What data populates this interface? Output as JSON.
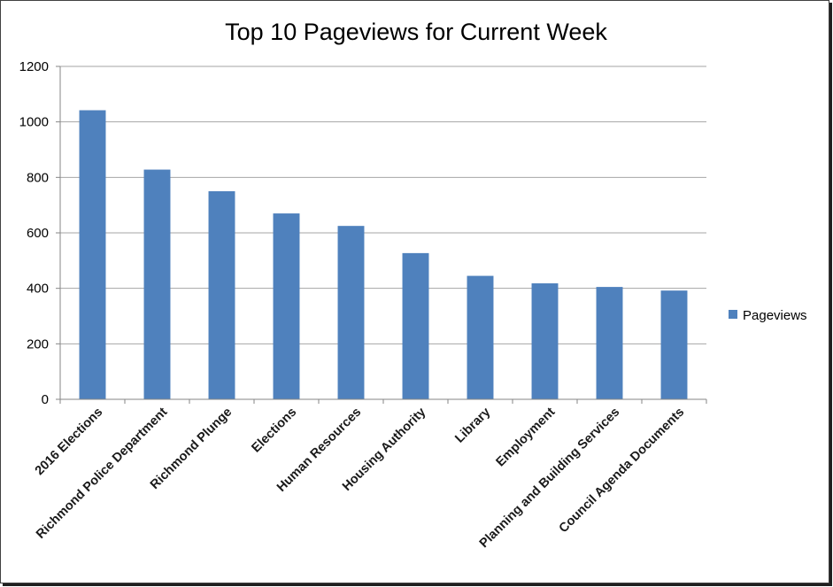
{
  "chart_data": {
    "type": "bar",
    "title": "Top 10 Pageviews for Current Week",
    "xlabel": "",
    "ylabel": "",
    "ylim": [
      0,
      1200
    ],
    "yticks": [
      0,
      200,
      400,
      600,
      800,
      1000,
      1200
    ],
    "grid": true,
    "legend_position": "right",
    "categories": [
      "2016 Elections",
      "Richmond Police Department",
      "Richmond Plunge",
      "Elections",
      "Human Resources",
      "Housing Authority",
      "Library",
      "Employment",
      "Planning and Building Services",
      "Council Agenda Documents"
    ],
    "series": [
      {
        "name": "Pageviews",
        "color": "#4f81bd",
        "values": [
          1042,
          828,
          750,
          670,
          625,
          527,
          445,
          418,
          405,
          392
        ]
      }
    ]
  }
}
